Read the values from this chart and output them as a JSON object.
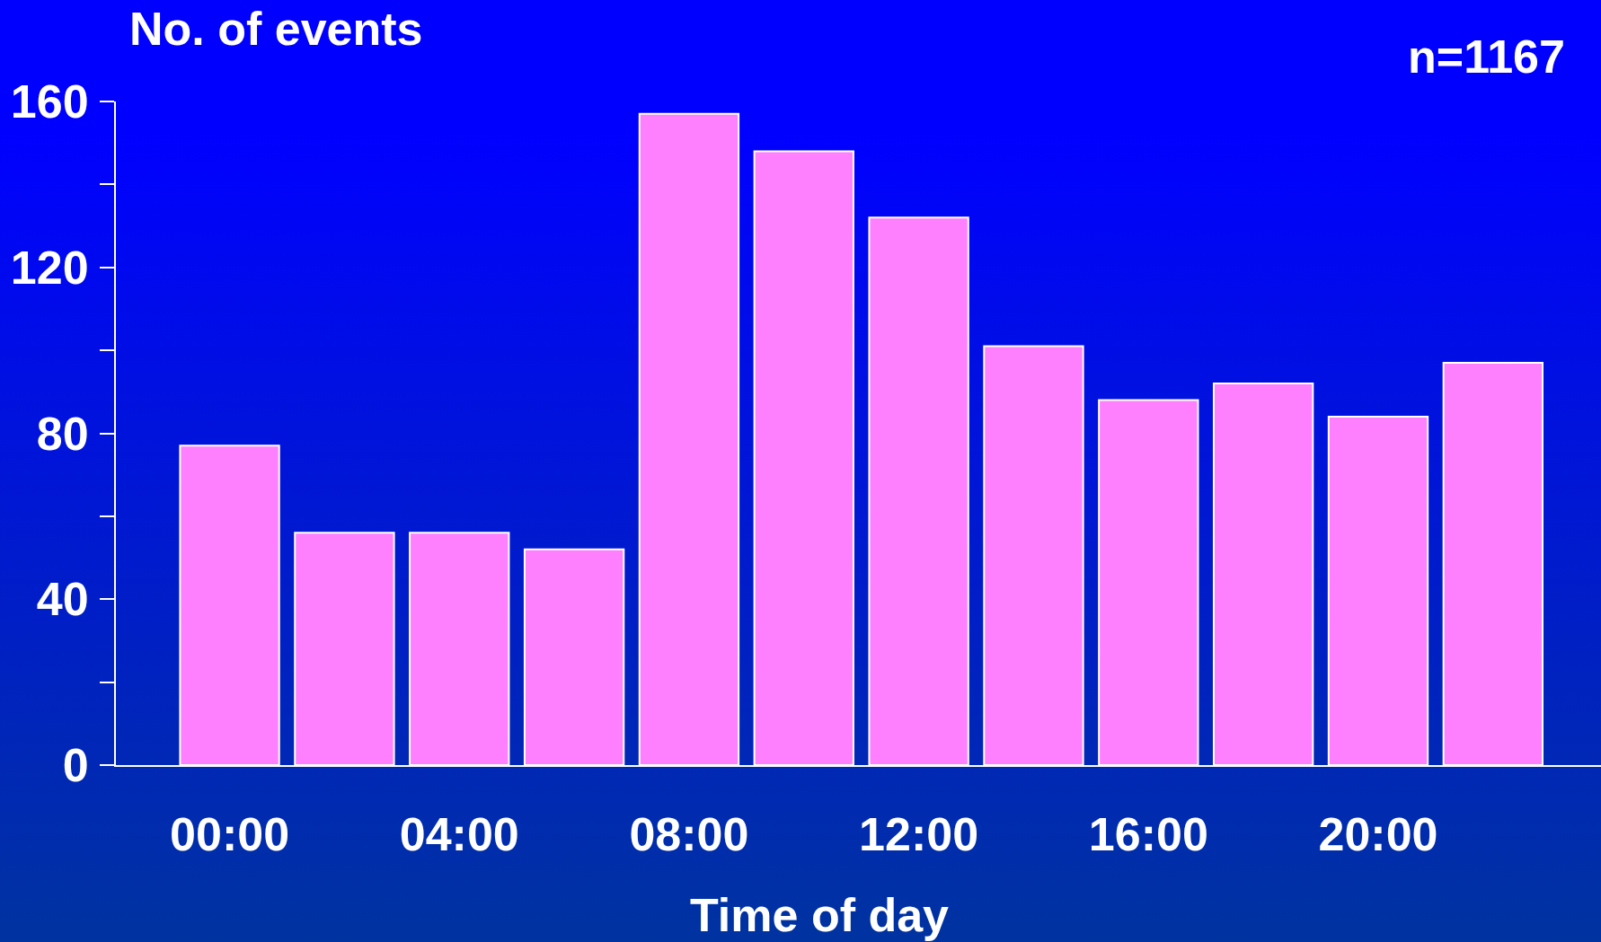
{
  "chart_data": {
    "type": "bar",
    "xlabel": "Time of day",
    "ylabel": "No. of events",
    "annotations": [
      "n=1167"
    ],
    "categories": [
      "00:00",
      null,
      "04:00",
      null,
      "08:00",
      null,
      "12:00",
      null,
      "16:00",
      null,
      "20:00",
      null
    ],
    "values": [
      77,
      56,
      56,
      52,
      157,
      148,
      132,
      101,
      88,
      92,
      84,
      97
    ],
    "color": "#ff80ff",
    "ylim": [
      0,
      160
    ],
    "yticks": [
      0,
      {
        "value": 20,
        "label": null
      },
      40,
      {
        "value": 60,
        "label": null
      },
      80,
      {
        "value": 100,
        "label": null
      },
      120,
      {
        "value": 140,
        "label": null
      },
      160
    ]
  }
}
